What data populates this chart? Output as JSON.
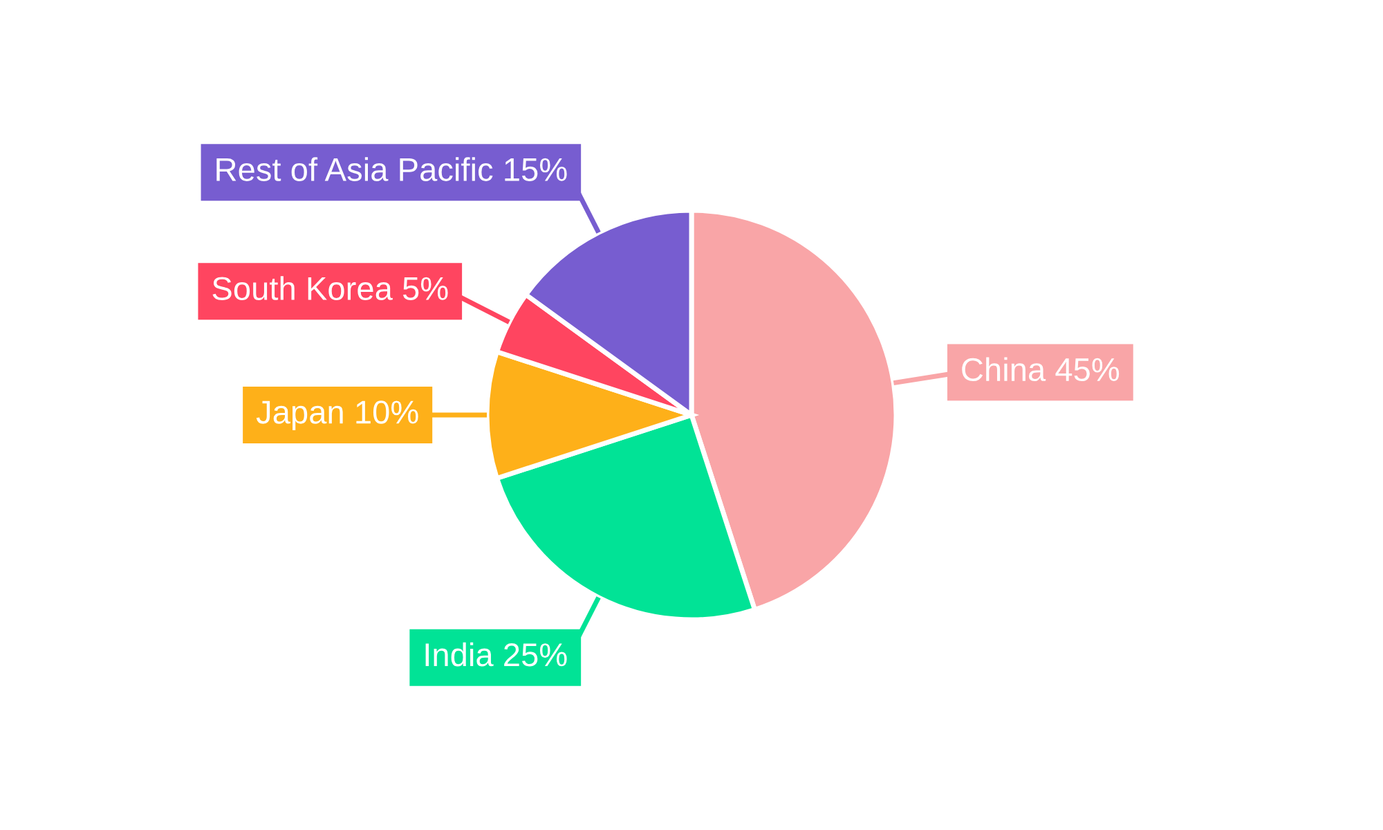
{
  "chart_data": {
    "type": "pie",
    "categories": [
      "China",
      "India",
      "Japan",
      "South Korea",
      "Rest of Asia Pacific"
    ],
    "values": [
      45,
      25,
      10,
      5,
      15
    ],
    "colors": [
      "#f9a5a7",
      "#01e396",
      "#feb019",
      "#ff4560",
      "#775dd0"
    ],
    "value_labels": [
      "45%",
      "25%",
      "10%",
      "5%",
      "15%"
    ],
    "legend": false
  }
}
